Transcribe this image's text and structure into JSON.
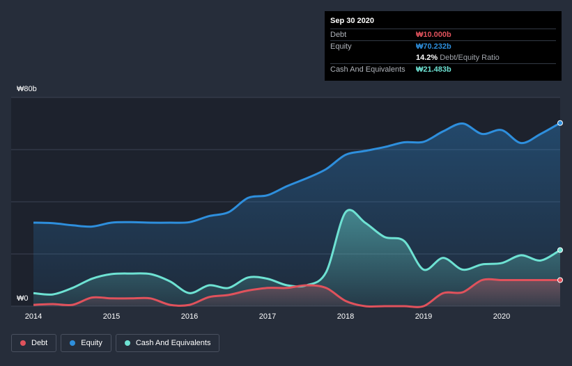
{
  "colors": {
    "background": "#262d3a",
    "plot_background": "#1d222d",
    "debt": "#e0525c",
    "equity": "#2e8fdd",
    "cash": "#6ee2d3",
    "grid": "#3c4352"
  },
  "tooltip": {
    "date": "Sep 30 2020",
    "debt_label": "Debt",
    "debt_value": "₩10.000b",
    "equity_label": "Equity",
    "equity_value": "₩70.232b",
    "ratio_value": "14.2%",
    "ratio_label": "Debt/Equity Ratio",
    "cash_label": "Cash And Equivalents",
    "cash_value": "₩21.483b"
  },
  "legend": {
    "debt": "Debt",
    "equity": "Equity",
    "cash": "Cash And Equivalents"
  },
  "chart_data": {
    "type": "area",
    "title": "",
    "xlabel": "",
    "ylabel": "",
    "xlim": [
      2014.0,
      2020.75
    ],
    "ylim": [
      0,
      80
    ],
    "y_tick_labels": [
      {
        "value": 80,
        "label": "₩80b"
      },
      {
        "value": 0,
        "label": "₩0"
      }
    ],
    "x_ticks": [
      {
        "value": 2014,
        "label": "2014"
      },
      {
        "value": 2015,
        "label": "2015"
      },
      {
        "value": 2016,
        "label": "2016"
      },
      {
        "value": 2017,
        "label": "2017"
      },
      {
        "value": 2018,
        "label": "2018"
      },
      {
        "value": 2019,
        "label": "2019"
      },
      {
        "value": 2020,
        "label": "2020"
      }
    ],
    "gridlines_y": [
      0,
      20,
      40,
      60,
      80
    ],
    "series": [
      {
        "key": "equity",
        "name": "Equity",
        "x": [
          2014.0,
          2014.25,
          2014.5,
          2014.75,
          2015.0,
          2015.25,
          2015.5,
          2015.75,
          2016.0,
          2016.25,
          2016.5,
          2016.75,
          2017.0,
          2017.25,
          2017.5,
          2017.75,
          2018.0,
          2018.25,
          2018.5,
          2018.75,
          2019.0,
          2019.25,
          2019.5,
          2019.75,
          2020.0,
          2020.25,
          2020.5,
          2020.75
        ],
        "values": [
          32.0,
          31.8,
          31.0,
          30.5,
          32.0,
          32.2,
          32.0,
          32.0,
          32.2,
          34.5,
          36.0,
          41.5,
          42.5,
          46.0,
          49.0,
          52.5,
          58.0,
          59.5,
          61.0,
          62.8,
          63.0,
          67.0,
          70.0,
          66.0,
          67.5,
          62.5,
          66.0,
          70.2
        ]
      },
      {
        "key": "cash",
        "name": "Cash And Equivalents",
        "x": [
          2014.0,
          2014.25,
          2014.5,
          2014.75,
          2015.0,
          2015.25,
          2015.5,
          2015.75,
          2016.0,
          2016.25,
          2016.5,
          2016.75,
          2017.0,
          2017.25,
          2017.5,
          2017.75,
          2018.0,
          2018.25,
          2018.5,
          2018.75,
          2019.0,
          2019.25,
          2019.5,
          2019.75,
          2020.0,
          2020.25,
          2020.5,
          2020.75
        ],
        "values": [
          5.0,
          4.5,
          7.0,
          10.5,
          12.3,
          12.5,
          12.3,
          9.5,
          5.0,
          8.0,
          7.0,
          11.0,
          10.5,
          8.0,
          8.0,
          13.0,
          36.0,
          32.0,
          26.5,
          25.0,
          14.0,
          18.5,
          14.0,
          16.0,
          16.5,
          19.5,
          17.5,
          21.5
        ]
      },
      {
        "key": "debt",
        "name": "Debt",
        "x": [
          2014.0,
          2014.25,
          2014.5,
          2014.75,
          2015.0,
          2015.25,
          2015.5,
          2015.75,
          2016.0,
          2016.25,
          2016.5,
          2016.75,
          2017.0,
          2017.25,
          2017.5,
          2017.75,
          2018.0,
          2018.25,
          2018.5,
          2018.75,
          2019.0,
          2019.25,
          2019.5,
          2019.75,
          2020.0,
          2020.25,
          2020.5,
          2020.75
        ],
        "values": [
          0.5,
          0.8,
          0.5,
          3.3,
          3.0,
          3.0,
          3.0,
          0.5,
          0.5,
          3.5,
          4.3,
          6.0,
          7.0,
          7.0,
          8.0,
          7.0,
          2.0,
          0.0,
          0.0,
          0.0,
          0.0,
          5.0,
          5.3,
          10.0,
          10.0,
          10.0,
          10.0,
          10.0
        ]
      }
    ]
  }
}
